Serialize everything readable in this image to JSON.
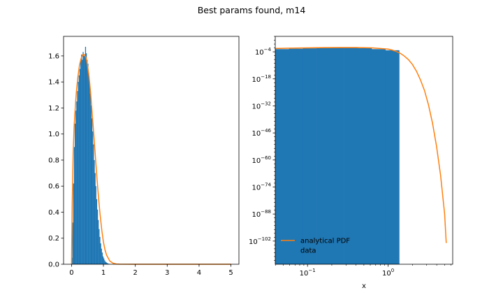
{
  "figure": {
    "suptitle": "Best params found, m14"
  },
  "colors": {
    "hist": "#1f77b4",
    "pdf": "#ff7f0e",
    "axis": "#000000"
  },
  "chart_data": [
    {
      "type": "bar",
      "subtype": "histogram",
      "xlim": [
        -0.25,
        5.25
      ],
      "ylim": [
        0,
        1.75
      ],
      "xticks": [
        0,
        1,
        2,
        3,
        4,
        5
      ],
      "xtick_labels": [
        "0",
        "1",
        "2",
        "3",
        "4",
        "5"
      ],
      "yticks": [
        0,
        0.2,
        0.4,
        0.6,
        0.8,
        1.0,
        1.2,
        1.4,
        1.6
      ],
      "ytick_labels": [
        "0.0",
        "0.2",
        "0.4",
        "0.6",
        "0.8",
        "1.0",
        "1.2",
        "1.4",
        "1.6"
      ],
      "bin_width": 0.025,
      "bins": [
        [
          0.0,
          0.05
        ],
        [
          0.025,
          0.32
        ],
        [
          0.05,
          0.62
        ],
        [
          0.075,
          0.9
        ],
        [
          0.1,
          1.08
        ],
        [
          0.125,
          1.18
        ],
        [
          0.15,
          1.25
        ],
        [
          0.175,
          1.33
        ],
        [
          0.2,
          1.4
        ],
        [
          0.225,
          1.45
        ],
        [
          0.25,
          1.5
        ],
        [
          0.275,
          1.56
        ],
        [
          0.3,
          1.61
        ],
        [
          0.325,
          1.57
        ],
        [
          0.35,
          1.63
        ],
        [
          0.375,
          1.6
        ],
        [
          0.4,
          1.61
        ],
        [
          0.425,
          1.67
        ],
        [
          0.45,
          1.62
        ],
        [
          0.475,
          1.57
        ],
        [
          0.5,
          1.54
        ],
        [
          0.525,
          1.47
        ],
        [
          0.55,
          1.4
        ],
        [
          0.575,
          1.31
        ],
        [
          0.6,
          1.22
        ],
        [
          0.625,
          1.12
        ],
        [
          0.65,
          1.02
        ],
        [
          0.675,
          0.92
        ],
        [
          0.7,
          0.8
        ],
        [
          0.725,
          0.7
        ],
        [
          0.75,
          0.6
        ],
        [
          0.775,
          0.5
        ],
        [
          0.8,
          0.42
        ],
        [
          0.825,
          0.34
        ],
        [
          0.85,
          0.27
        ],
        [
          0.875,
          0.21
        ],
        [
          0.9,
          0.16
        ],
        [
          0.925,
          0.12
        ],
        [
          0.95,
          0.09
        ],
        [
          0.975,
          0.06
        ],
        [
          1.0,
          0.045
        ],
        [
          1.025,
          0.03
        ],
        [
          1.05,
          0.02
        ],
        [
          1.075,
          0.015
        ],
        [
          1.1,
          0.01
        ],
        [
          1.125,
          0.006
        ],
        [
          1.15,
          0.004
        ],
        [
          1.175,
          0.002
        ]
      ],
      "pdf": {
        "x": [
          0,
          0.02,
          0.05,
          0.08,
          0.1,
          0.15,
          0.2,
          0.25,
          0.3,
          0.35,
          0.4,
          0.45,
          0.5,
          0.55,
          0.6,
          0.65,
          0.7,
          0.75,
          0.8,
          0.85,
          0.9,
          0.95,
          1.0,
          1.05,
          1.1,
          1.2,
          1.3,
          1.4,
          1.5,
          2.0,
          3.0,
          4.0,
          5.0
        ],
        "y": [
          0,
          0.45,
          0.85,
          1.05,
          1.14,
          1.32,
          1.44,
          1.53,
          1.58,
          1.61,
          1.61,
          1.59,
          1.53,
          1.44,
          1.31,
          1.15,
          0.99,
          0.82,
          0.65,
          0.5,
          0.37,
          0.26,
          0.17,
          0.11,
          0.07,
          0.025,
          0.008,
          0.002,
          0.0005,
          0,
          0,
          0,
          0
        ]
      }
    },
    {
      "type": "bar",
      "subtype": "histogram",
      "xscale": "log",
      "yscale": "log",
      "xlabel": "x",
      "xlim_log10": [
        -1.4,
        0.8
      ],
      "ylim_log10": [
        -114,
        4
      ],
      "xticks_log10": [
        -1,
        0
      ],
      "xtick_labels": [
        {
          "base": "10",
          "exp": "−1"
        },
        {
          "base": "10",
          "exp": "0"
        }
      ],
      "yticks_log10": [
        -102,
        -88,
        -74,
        -60,
        -46,
        -32,
        -18,
        -4
      ],
      "ytick_labels": [
        {
          "base": "10",
          "exp": "−102"
        },
        {
          "base": "10",
          "exp": "−88"
        },
        {
          "base": "10",
          "exp": "−74"
        },
        {
          "base": "10",
          "exp": "−60"
        },
        {
          "base": "10",
          "exp": "−46"
        },
        {
          "base": "10",
          "exp": "−32"
        },
        {
          "base": "10",
          "exp": "−18"
        },
        {
          "base": "10",
          "exp": "−4"
        }
      ],
      "hist": {
        "x_start_log10": -1.4,
        "x_end_log10": 0.137,
        "top_log10": [
          -2.6,
          -2.4,
          -2.2,
          -2.0,
          -1.9,
          -1.9,
          -2.1,
          -2.6,
          -3.2
        ]
      },
      "pdf": {
        "x_log10": [
          -1.4,
          -1.2,
          -1.0,
          -0.8,
          -0.6,
          -0.4,
          -0.2,
          0.0,
          0.05,
          0.1,
          0.15,
          0.2,
          0.25,
          0.3,
          0.35,
          0.4,
          0.45,
          0.5,
          0.55,
          0.6,
          0.65,
          0.7,
          0.72
        ],
        "y_log10": [
          -2.3,
          -2.1,
          -1.95,
          -1.85,
          -1.8,
          -1.8,
          -1.95,
          -2.6,
          -3.1,
          -3.8,
          -4.8,
          -6.2,
          -8.0,
          -10.5,
          -14.0,
          -18.5,
          -24.0,
          -31.5,
          -41.0,
          -53.0,
          -68.0,
          -88.0,
          -103.0
        ]
      },
      "legend": {
        "position": "lower-left",
        "entries": [
          {
            "label": "analytical PDF",
            "kind": "line"
          },
          {
            "label": "data",
            "kind": "patch"
          }
        ]
      }
    }
  ]
}
